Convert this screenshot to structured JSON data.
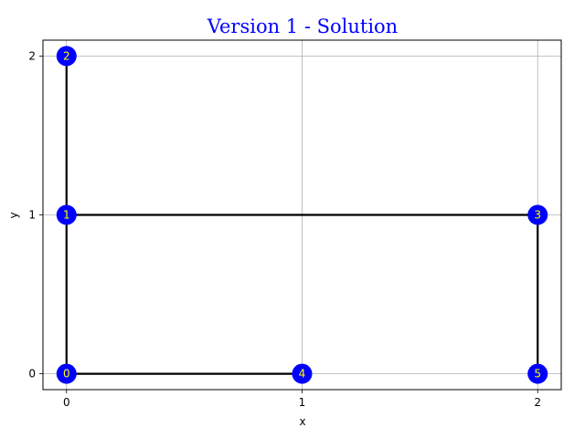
{
  "colors": {
    "title": "#0000ff",
    "node_fill": "#0000ff",
    "node_label": "#ffff00",
    "edge": "#000000",
    "grid": "#b0b0b0",
    "axes": "#000000"
  },
  "chart_data": {
    "type": "scatter",
    "title": "Version 1 - Solution",
    "xlabel": "x",
    "ylabel": "y",
    "xlim": [
      -0.1,
      2.1
    ],
    "ylim": [
      -0.1,
      2.1
    ],
    "xticks": [
      0,
      1,
      2
    ],
    "yticks": [
      0,
      1,
      2
    ],
    "xtick_labels": [
      "0",
      "1",
      "2"
    ],
    "ytick_labels": [
      "0",
      "1",
      "2"
    ],
    "grid": true,
    "nodes": [
      {
        "id": "0",
        "x": 0,
        "y": 0
      },
      {
        "id": "1",
        "x": 0,
        "y": 1
      },
      {
        "id": "2",
        "x": 0,
        "y": 2
      },
      {
        "id": "3",
        "x": 2,
        "y": 1
      },
      {
        "id": "4",
        "x": 1,
        "y": 0
      },
      {
        "id": "5",
        "x": 2,
        "y": 0
      }
    ],
    "edges": [
      [
        "0",
        "4"
      ],
      [
        "0",
        "1"
      ],
      [
        "1",
        "2"
      ],
      [
        "1",
        "3"
      ],
      [
        "3",
        "5"
      ]
    ]
  }
}
